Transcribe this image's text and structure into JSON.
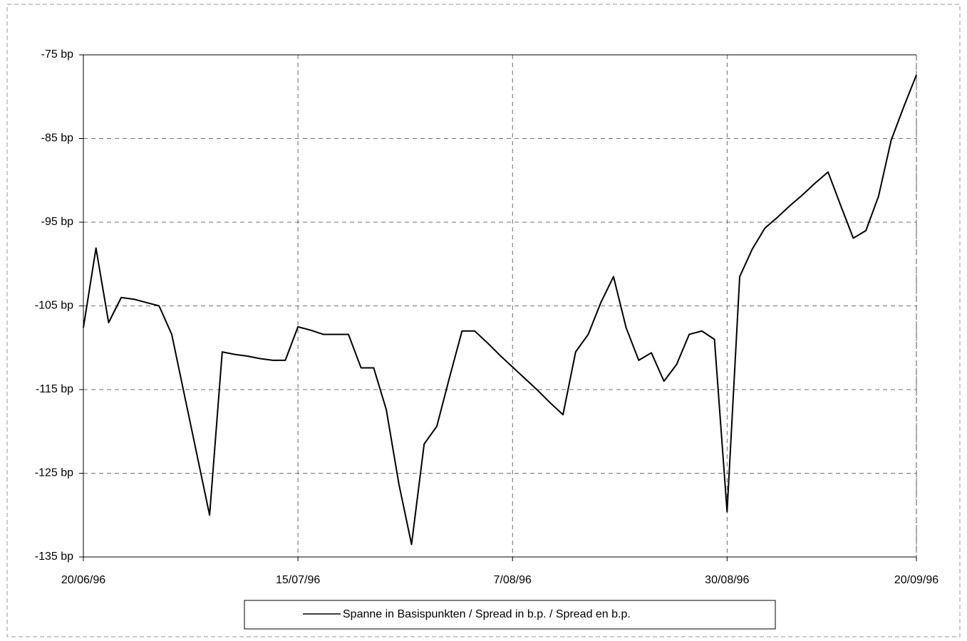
{
  "chart_data": {
    "type": "line",
    "categories": [
      "20/06/96",
      null,
      null,
      null,
      null,
      null,
      null,
      null,
      null,
      null,
      null,
      null,
      null,
      null,
      null,
      null,
      null,
      "15/07/96",
      null,
      null,
      null,
      null,
      null,
      null,
      null,
      null,
      null,
      null,
      null,
      null,
      null,
      null,
      null,
      null,
      "7/08/96",
      null,
      null,
      null,
      null,
      null,
      null,
      null,
      null,
      null,
      null,
      null,
      null,
      null,
      null,
      null,
      null,
      "30/08/96",
      null,
      null,
      null,
      null,
      null,
      null,
      null,
      null,
      null,
      null,
      null,
      null,
      null,
      null,
      "20/09/96"
    ],
    "series": [
      {
        "name": "Spanne in Basispunkten / Spread in b.p. / Spread en b.p.",
        "color": "#000000",
        "values": [
          -107.6,
          -98.1,
          -107.0,
          -104.0,
          -104.2,
          -104.6,
          -105.0,
          -108.4,
          -115.6,
          -122.8,
          -130.0,
          -110.5,
          -110.8,
          -111.0,
          -111.3,
          -111.5,
          -111.5,
          -107.5,
          -107.9,
          -108.4,
          -108.4,
          -108.4,
          -112.4,
          -112.4,
          -117.4,
          -126.3,
          -133.5,
          -121.5,
          -119.4,
          -113.6,
          -108.0,
          -108.0,
          -109.4,
          -110.9,
          -112.3,
          -113.7,
          -115.1,
          -116.6,
          -118.0,
          -110.5,
          -108.4,
          -104.6,
          -101.5,
          -107.6,
          -111.5,
          -110.6,
          -114.0,
          -112.0,
          -108.4,
          -108.0,
          -109.0,
          -129.6,
          -101.5,
          -98.2,
          -95.7,
          -94.4,
          -93.0,
          -91.7,
          -90.3,
          -89.0,
          -93.0,
          -96.9,
          -96.0,
          -91.9,
          -85.2,
          -81.2,
          -77.4
        ]
      }
    ],
    "ylim": [
      -135,
      -75
    ],
    "yticks": [
      {
        "value": -135,
        "label": "-135 bp"
      },
      {
        "value": -125,
        "label": "-125 bp"
      },
      {
        "value": -115,
        "label": "-115 bp"
      },
      {
        "value": -105,
        "label": "-105 bp"
      },
      {
        "value": -95,
        "label": "-95 bp"
      },
      {
        "value": -85,
        "label": "-85 bp"
      },
      {
        "value": -75,
        "label": "-75 bp"
      }
    ],
    "grid": true,
    "legend": "bottom"
  }
}
